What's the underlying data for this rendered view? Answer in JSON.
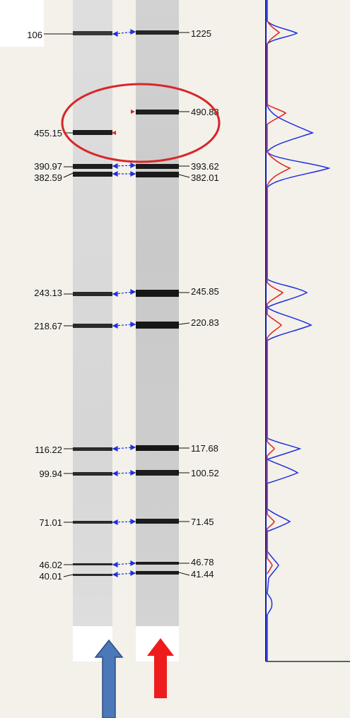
{
  "left_lane": {
    "labels": [
      "106",
      "455.15",
      "390.97",
      "382.59",
      "243.13",
      "218.67",
      "116.22",
      "99.94",
      "71.01",
      "46.02",
      "40.01"
    ]
  },
  "right_lane": {
    "labels": [
      "1225",
      "490.88",
      "393.62",
      "382.01",
      "245.85",
      "220.83",
      "117.68",
      "100.52",
      "71.45",
      "46.78",
      "41.44"
    ]
  },
  "colors": {
    "highlight_circle": "#d9262a",
    "link_arrow": "#1f2fe0",
    "trace_blue": "#1f2fe0",
    "trace_red": "#e0231f",
    "up_arrow_blue": "#4a78b8",
    "up_arrow_red": "#ee1c1c",
    "band": "#202020",
    "axis": "#0a1ab8"
  },
  "icons": {
    "left_arrow": "up-arrow-blue-icon",
    "right_arrow": "up-arrow-red-icon"
  }
}
